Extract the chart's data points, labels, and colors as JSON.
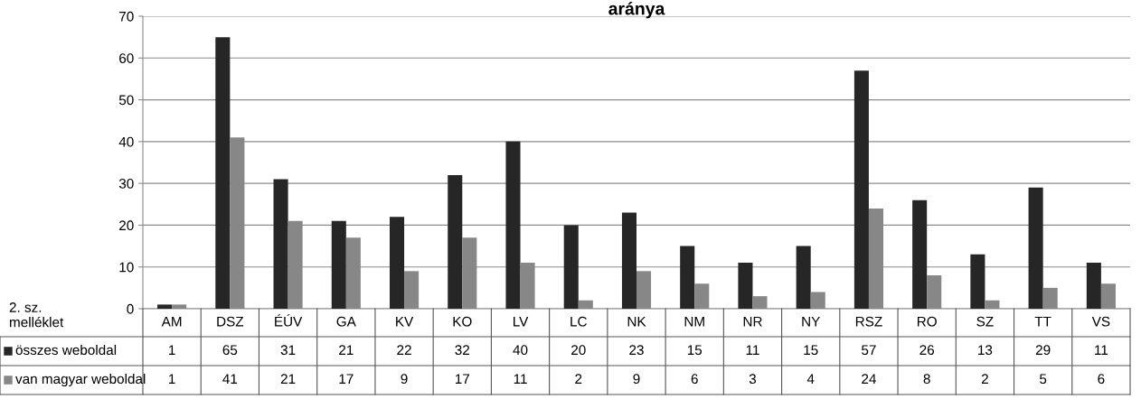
{
  "chart_data": {
    "type": "bar",
    "title": "aránya",
    "categories": [
      "AM",
      "DSZ",
      "ÉÚV",
      "GA",
      "KV",
      "KO",
      "LV",
      "LC",
      "NK",
      "NM",
      "NR",
      "NY",
      "RSZ",
      "RO",
      "SZ",
      "TT",
      "VS"
    ],
    "series": [
      {
        "name": "összes weboldal",
        "color": "#262626",
        "values": [
          1,
          65,
          31,
          21,
          22,
          32,
          40,
          20,
          23,
          15,
          11,
          15,
          57,
          26,
          13,
          29,
          11
        ]
      },
      {
        "name": "van magyar weboldal",
        "color": "#878787",
        "values": [
          1,
          41,
          21,
          17,
          9,
          17,
          11,
          2,
          9,
          6,
          3,
          4,
          24,
          8,
          2,
          5,
          6
        ]
      }
    ],
    "ylim": [
      0,
      70
    ],
    "yticks": [
      0,
      10,
      20,
      30,
      40,
      50,
      60,
      70
    ],
    "grid": "y",
    "data_labels": true,
    "legend": "bottom",
    "annotations": [
      "2. sz.\nmelléklet"
    ]
  }
}
